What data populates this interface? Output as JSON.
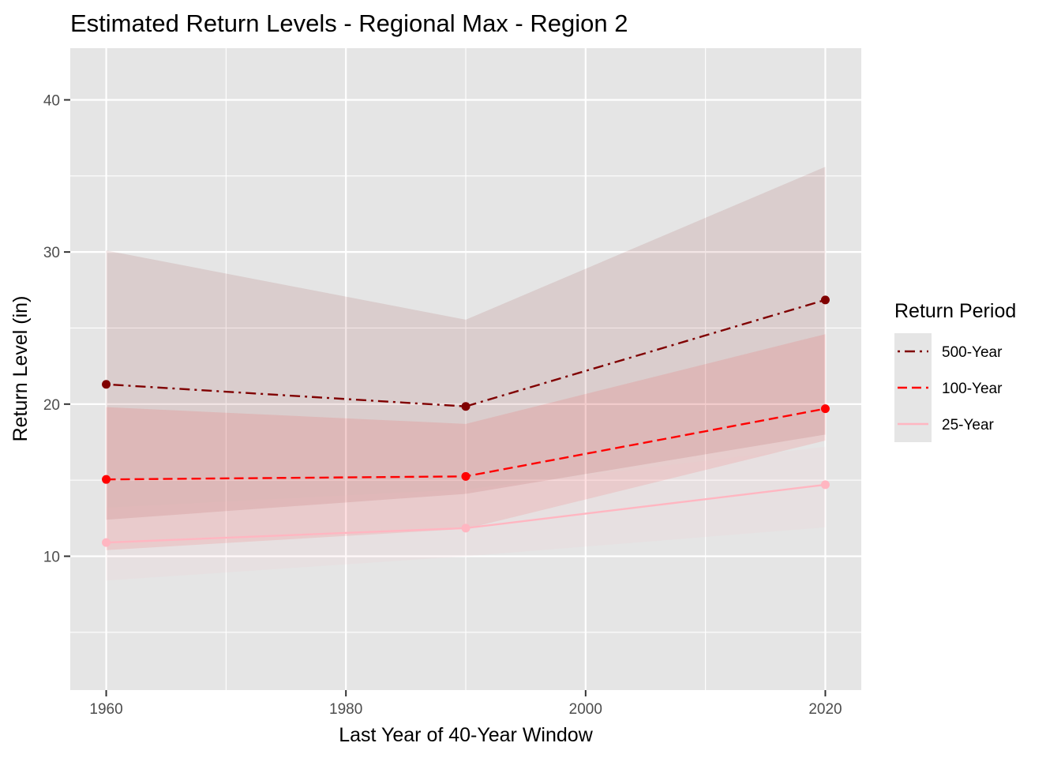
{
  "chart_data": {
    "type": "line",
    "title": "Estimated Return Levels - Regional Max - Region 2",
    "xlabel": "Last Year of 40-Year Window",
    "ylabel": "Return Level (in)",
    "x": [
      1960,
      1990,
      2020
    ],
    "xlim": [
      1957,
      2023
    ],
    "ylim": [
      1.2,
      43.4
    ],
    "x_ticks": [
      1960,
      1980,
      2000,
      2020
    ],
    "x_tick_labels": [
      "1960",
      "1980",
      "2000",
      "2020"
    ],
    "y_ticks": [
      10,
      20,
      30,
      40
    ],
    "y_tick_labels": [
      "10",
      "20",
      "30",
      "40"
    ],
    "x_minor_gridlines": [
      1970,
      1990,
      2010
    ],
    "y_minor_gridlines": [
      5,
      15,
      25,
      35
    ],
    "grid": true,
    "panel_background": "#e5e5e5",
    "gridline_color": "#ffffff",
    "legend": {
      "title": "Return Period",
      "position": "right"
    },
    "series": [
      {
        "name": "500-Year",
        "values": [
          21.3,
          19.85,
          26.85
        ],
        "ci_lower": [
          12.4,
          14.1,
          18.0
        ],
        "ci_upper": [
          30.1,
          25.55,
          35.6
        ],
        "color": "#800000",
        "linetype": "dotdash"
      },
      {
        "name": "100-Year",
        "values": [
          15.05,
          15.25,
          19.7
        ],
        "ci_lower": [
          10.4,
          11.8,
          17.6
        ],
        "ci_upper": [
          19.8,
          18.7,
          24.6
        ],
        "color": "#ff0000",
        "linetype": "dashed"
      },
      {
        "name": "25-Year",
        "values": [
          10.9,
          11.85,
          14.7
        ],
        "ci_lower": [
          8.4,
          10.0,
          11.9
        ],
        "ci_upper": [
          13.2,
          14.4,
          17.2
        ],
        "color": "#ffb6c1",
        "linetype": "solid"
      }
    ]
  }
}
